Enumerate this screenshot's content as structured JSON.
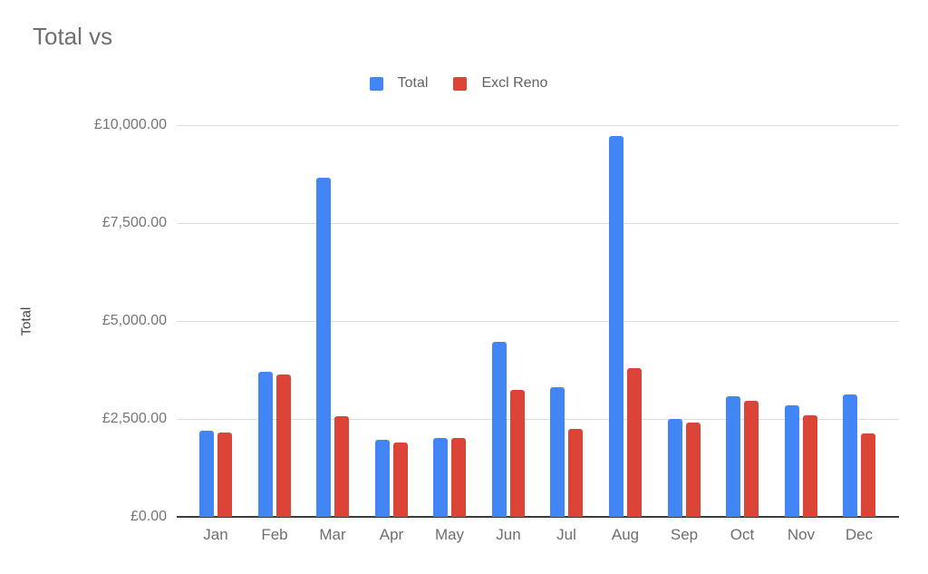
{
  "chart_data": {
    "type": "bar",
    "title": "Total vs",
    "xlabel": "",
    "ylabel": "Total",
    "categories": [
      "Jan",
      "Feb",
      "Mar",
      "Apr",
      "May",
      "Jun",
      "Jul",
      "Aug",
      "Sep",
      "Oct",
      "Nov",
      "Dec"
    ],
    "series": [
      {
        "name": "Total",
        "color": "#4285F4",
        "values": [
          2200,
          3700,
          8650,
          1970,
          2020,
          4460,
          3300,
          9720,
          2500,
          3080,
          2840,
          3120
        ]
      },
      {
        "name": "Excl Reno",
        "color": "#DB4437",
        "values": [
          2160,
          3630,
          2570,
          1900,
          2010,
          3250,
          2250,
          3800,
          2400,
          2960,
          2600,
          2140
        ]
      }
    ],
    "ylim": [
      0,
      10000
    ],
    "ytick_step": 2500,
    "ytick_labels": [
      "£0.00",
      "£2,500.00",
      "£5,000.00",
      "£7,500.00",
      "£10,000.00"
    ],
    "grid": true,
    "legend_position": "top",
    "currency": "£"
  },
  "colors": {
    "grid": "#dddddd",
    "axis_line": "#3c3c3c",
    "title_text": "#6f6f6f",
    "tick_text": "#757575",
    "legend_text": "#5f6368",
    "background": "#ffffff"
  }
}
